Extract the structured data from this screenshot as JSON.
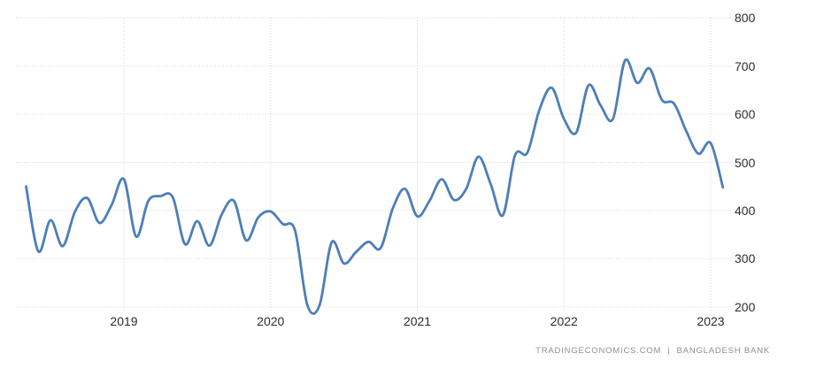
{
  "chart_data": {
    "type": "line",
    "title": "",
    "xlabel": "",
    "ylabel": "",
    "x": [
      "2018-05",
      "2018-06",
      "2018-07",
      "2018-08",
      "2018-09",
      "2018-10",
      "2018-11",
      "2018-12",
      "2019-01",
      "2019-02",
      "2019-03",
      "2019-04",
      "2019-05",
      "2019-06",
      "2019-07",
      "2019-08",
      "2019-09",
      "2019-10",
      "2019-11",
      "2019-12",
      "2020-01",
      "2020-02",
      "2020-03",
      "2020-04",
      "2020-05",
      "2020-06",
      "2020-07",
      "2020-08",
      "2020-09",
      "2020-10",
      "2020-11",
      "2020-12",
      "2021-01",
      "2021-02",
      "2021-03",
      "2021-04",
      "2021-05",
      "2021-06",
      "2021-07",
      "2021-08",
      "2021-09",
      "2021-10",
      "2021-11",
      "2021-12",
      "2022-01",
      "2022-02",
      "2022-03",
      "2022-04",
      "2022-05",
      "2022-06",
      "2022-07",
      "2022-08",
      "2022-09",
      "2022-10",
      "2022-11",
      "2022-12",
      "2023-01",
      "2023-02"
    ],
    "values": [
      450,
      315,
      380,
      326,
      398,
      426,
      374,
      412,
      465,
      346,
      420,
      430,
      427,
      330,
      378,
      327,
      392,
      420,
      338,
      386,
      398,
      372,
      358,
      204,
      203,
      334,
      290,
      314,
      335,
      322,
      405,
      445,
      388,
      420,
      465,
      422,
      445,
      512,
      455,
      390,
      515,
      520,
      610,
      655,
      590,
      562,
      660,
      618,
      590,
      712,
      665,
      695,
      630,
      622,
      565,
      518,
      540,
      448
    ],
    "ylim": [
      200,
      800
    ],
    "y_ticks": [
      800,
      700,
      600,
      500,
      400,
      300,
      200
    ],
    "x_ticks": [
      "2019",
      "2020",
      "2021",
      "2022",
      "2023"
    ],
    "grid": true,
    "legend_position": "none",
    "smooth": true
  },
  "colors": {
    "line": "#4d7eb8",
    "grid": "#d6d6d6",
    "tick_text": "#2d2d2d",
    "footer_text": "#8f8f8f",
    "background": "#ffffff"
  },
  "footer": {
    "site": "TRADINGECONOMICS.COM",
    "separator": "|",
    "provider": "BANGLADESH BANK"
  }
}
